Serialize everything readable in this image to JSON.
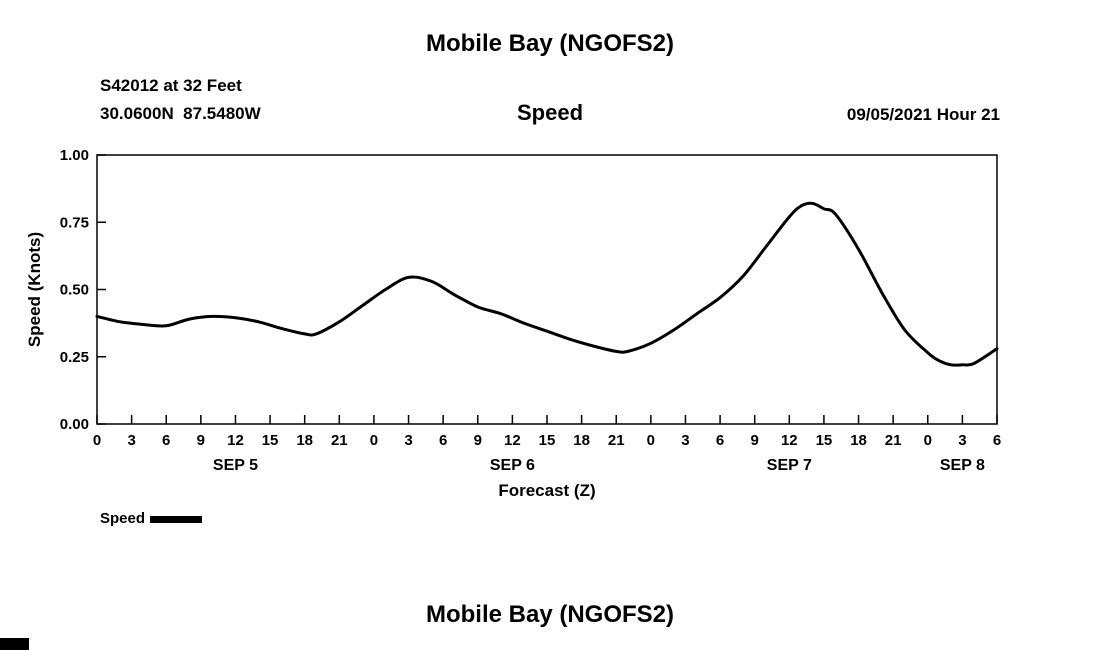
{
  "header": {
    "title": "Mobile Bay (NGOFS2)",
    "station": "S42012 at 32 Feet",
    "coordinates": "30.0600N  87.5480W",
    "plot_title": "Speed",
    "datetime": "09/05/2021 Hour 21"
  },
  "footer": {
    "next_title": "Mobile Bay (NGOFS2)"
  },
  "chart_data": {
    "type": "line",
    "title": "Speed",
    "xlabel": "Forecast (Z)",
    "ylabel": "Speed (Knots)",
    "ylim": [
      0.0,
      1.0
    ],
    "ytick_values": [
      0.0,
      0.25,
      0.5,
      0.75,
      1.0
    ],
    "ytick_labels": [
      "0.00",
      "0.25",
      "0.50",
      "0.75",
      "1.00"
    ],
    "xlim": [
      0,
      78
    ],
    "xtick_interval_hours": 3,
    "xtick_labels": [
      "0",
      "3",
      "6",
      "9",
      "12",
      "15",
      "18",
      "21",
      "0",
      "3",
      "6",
      "9",
      "12",
      "15",
      "18",
      "21",
      "0",
      "3",
      "6",
      "9",
      "12",
      "15",
      "18",
      "21",
      "0",
      "3",
      "6"
    ],
    "date_labels": [
      {
        "label": "SEP 5",
        "hour": 12
      },
      {
        "label": "SEP 6",
        "hour": 36
      },
      {
        "label": "SEP 7",
        "hour": 60
      },
      {
        "label": "SEP 8",
        "hour": 75
      }
    ],
    "grid": false,
    "line_color": "#000000",
    "series": [
      {
        "name": "Speed",
        "color": "#000000",
        "x": [
          0,
          2,
          4,
          6,
          8,
          10,
          12,
          14,
          16,
          18,
          19,
          21,
          23,
          25,
          27,
          29,
          31,
          33,
          35,
          37,
          39,
          41,
          43,
          45,
          46,
          48,
          50,
          52,
          54,
          56,
          58,
          60,
          61,
          62,
          63,
          64,
          66,
          68,
          70,
          72,
          73,
          74,
          75,
          76,
          78
        ],
        "y": [
          0.4,
          0.38,
          0.37,
          0.365,
          0.39,
          0.4,
          0.395,
          0.38,
          0.355,
          0.335,
          0.335,
          0.38,
          0.44,
          0.5,
          0.545,
          0.53,
          0.48,
          0.435,
          0.41,
          0.375,
          0.345,
          0.315,
          0.29,
          0.27,
          0.27,
          0.3,
          0.35,
          0.41,
          0.47,
          0.55,
          0.66,
          0.77,
          0.81,
          0.82,
          0.8,
          0.78,
          0.65,
          0.49,
          0.35,
          0.265,
          0.235,
          0.22,
          0.22,
          0.225,
          0.28
        ]
      }
    ],
    "legend": {
      "position": "bottom-left",
      "entries": [
        {
          "label": "Speed",
          "color": "#000000"
        }
      ]
    }
  }
}
